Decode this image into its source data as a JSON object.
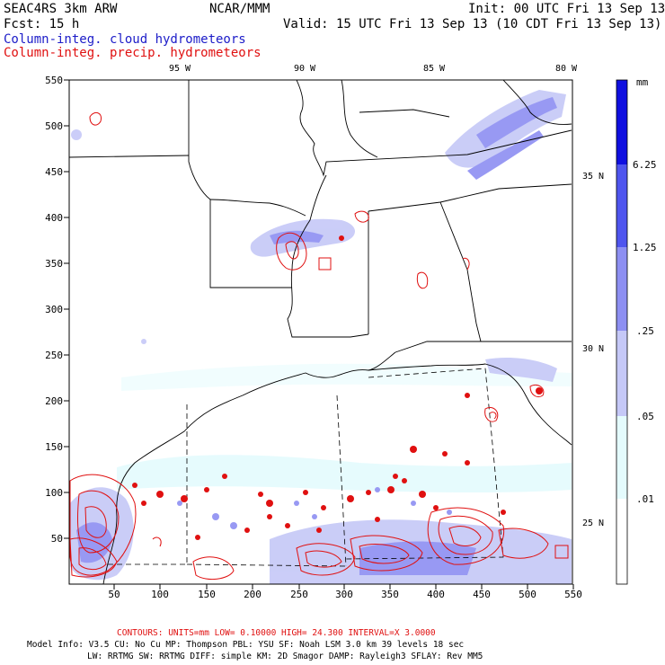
{
  "header": {
    "model": "SEAC4RS  3km ARW",
    "org": "NCAR/MMM",
    "init": "Init: 00 UTC Fri 13 Sep 13",
    "fcst": "Fcst:   15 h",
    "valid": "Valid: 15 UTC Fri 13 Sep 13 (10 CDT Fri 13 Sep 13)",
    "field1": "Column-integ. cloud hydrometeors",
    "field2": "Column-integ. precip. hydrometeors"
  },
  "top_lon_labels": [
    "95 W",
    "90 W",
    "85 W",
    "80 W"
  ],
  "right_lat_labels": [
    "35 N",
    "30 N",
    "25 N"
  ],
  "y_ticks": [
    "550",
    "500",
    "450",
    "400",
    "350",
    "300",
    "250",
    "200",
    "150",
    "100",
    "50"
  ],
  "x_ticks": [
    "50",
    "100",
    "150",
    "200",
    "250",
    "300",
    "350",
    "400",
    "450",
    "500",
    "550"
  ],
  "colorbar": {
    "unit": "mm",
    "labels": [
      "6.25",
      "1.25",
      ".25",
      ".05",
      ".01"
    ],
    "colors": [
      "#1010e0",
      "#4f55ee",
      "#8d8ff2",
      "#c5c8f7",
      "#e4fbfd",
      "#ffffff"
    ]
  },
  "footer": {
    "contours": "CONTOURS:  UNITS=mm  LOW= 0.10000      HIGH=  24.300      INTERVAL=X  3.0000",
    "info1": "Model Info: V3.5      CU: No Cu    MP: Thompson    PBL: YSU      SF: Noah LSM     3.0 km   39 levels   18 sec",
    "info2": "LW: RRTMG     SW: RRTMG   DIFF: simple KM: 2D Smagor DAMP: Rayleigh3   SFLAY: Rev MM5"
  }
}
